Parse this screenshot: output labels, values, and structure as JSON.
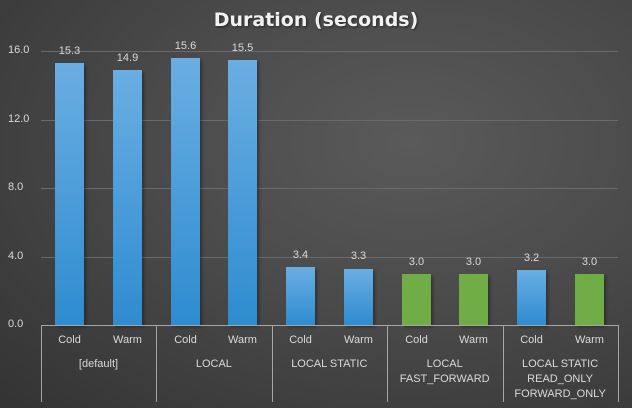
{
  "chart_data": {
    "type": "bar",
    "title": "Duration (seconds)",
    "xlabel": "",
    "ylabel": "",
    "ylim": [
      0,
      16
    ],
    "yticks": [
      "0.0",
      "4.0",
      "8.0",
      "12.0",
      "16.0"
    ],
    "grid": true,
    "legend": null,
    "groups": [
      "[default]",
      "LOCAL",
      "LOCAL STATIC",
      "LOCAL\nFAST_FORWARD",
      "LOCAL STATIC\nREAD_ONLY\nFORWARD_ONLY"
    ],
    "subcategories": [
      "Cold",
      "Warm"
    ],
    "categories": [
      "[default] Cold",
      "[default] Warm",
      "LOCAL Cold",
      "LOCAL Warm",
      "LOCAL STATIC Cold",
      "LOCAL STATIC Warm",
      "LOCAL FAST_FORWARD Cold",
      "LOCAL FAST_FORWARD Warm",
      "LOCAL STATIC READ_ONLY FORWARD_ONLY Cold",
      "LOCAL STATIC READ_ONLY FORWARD_ONLY Warm"
    ],
    "values": [
      15.3,
      14.9,
      15.6,
      15.5,
      3.4,
      3.3,
      3.0,
      3.0,
      3.2,
      3.0
    ],
    "value_labels": [
      "15.3",
      "14.9",
      "15.6",
      "15.5",
      "3.4",
      "3.3",
      "3.0",
      "3.0",
      "3.2",
      "3.0"
    ],
    "bar_colors": [
      "#5ba3de",
      "#5ba3de",
      "#5ba3de",
      "#5ba3de",
      "#5ba3de",
      "#5ba3de",
      "#70ad47",
      "#70ad47",
      "#5ba3de",
      "#70ad47"
    ]
  }
}
